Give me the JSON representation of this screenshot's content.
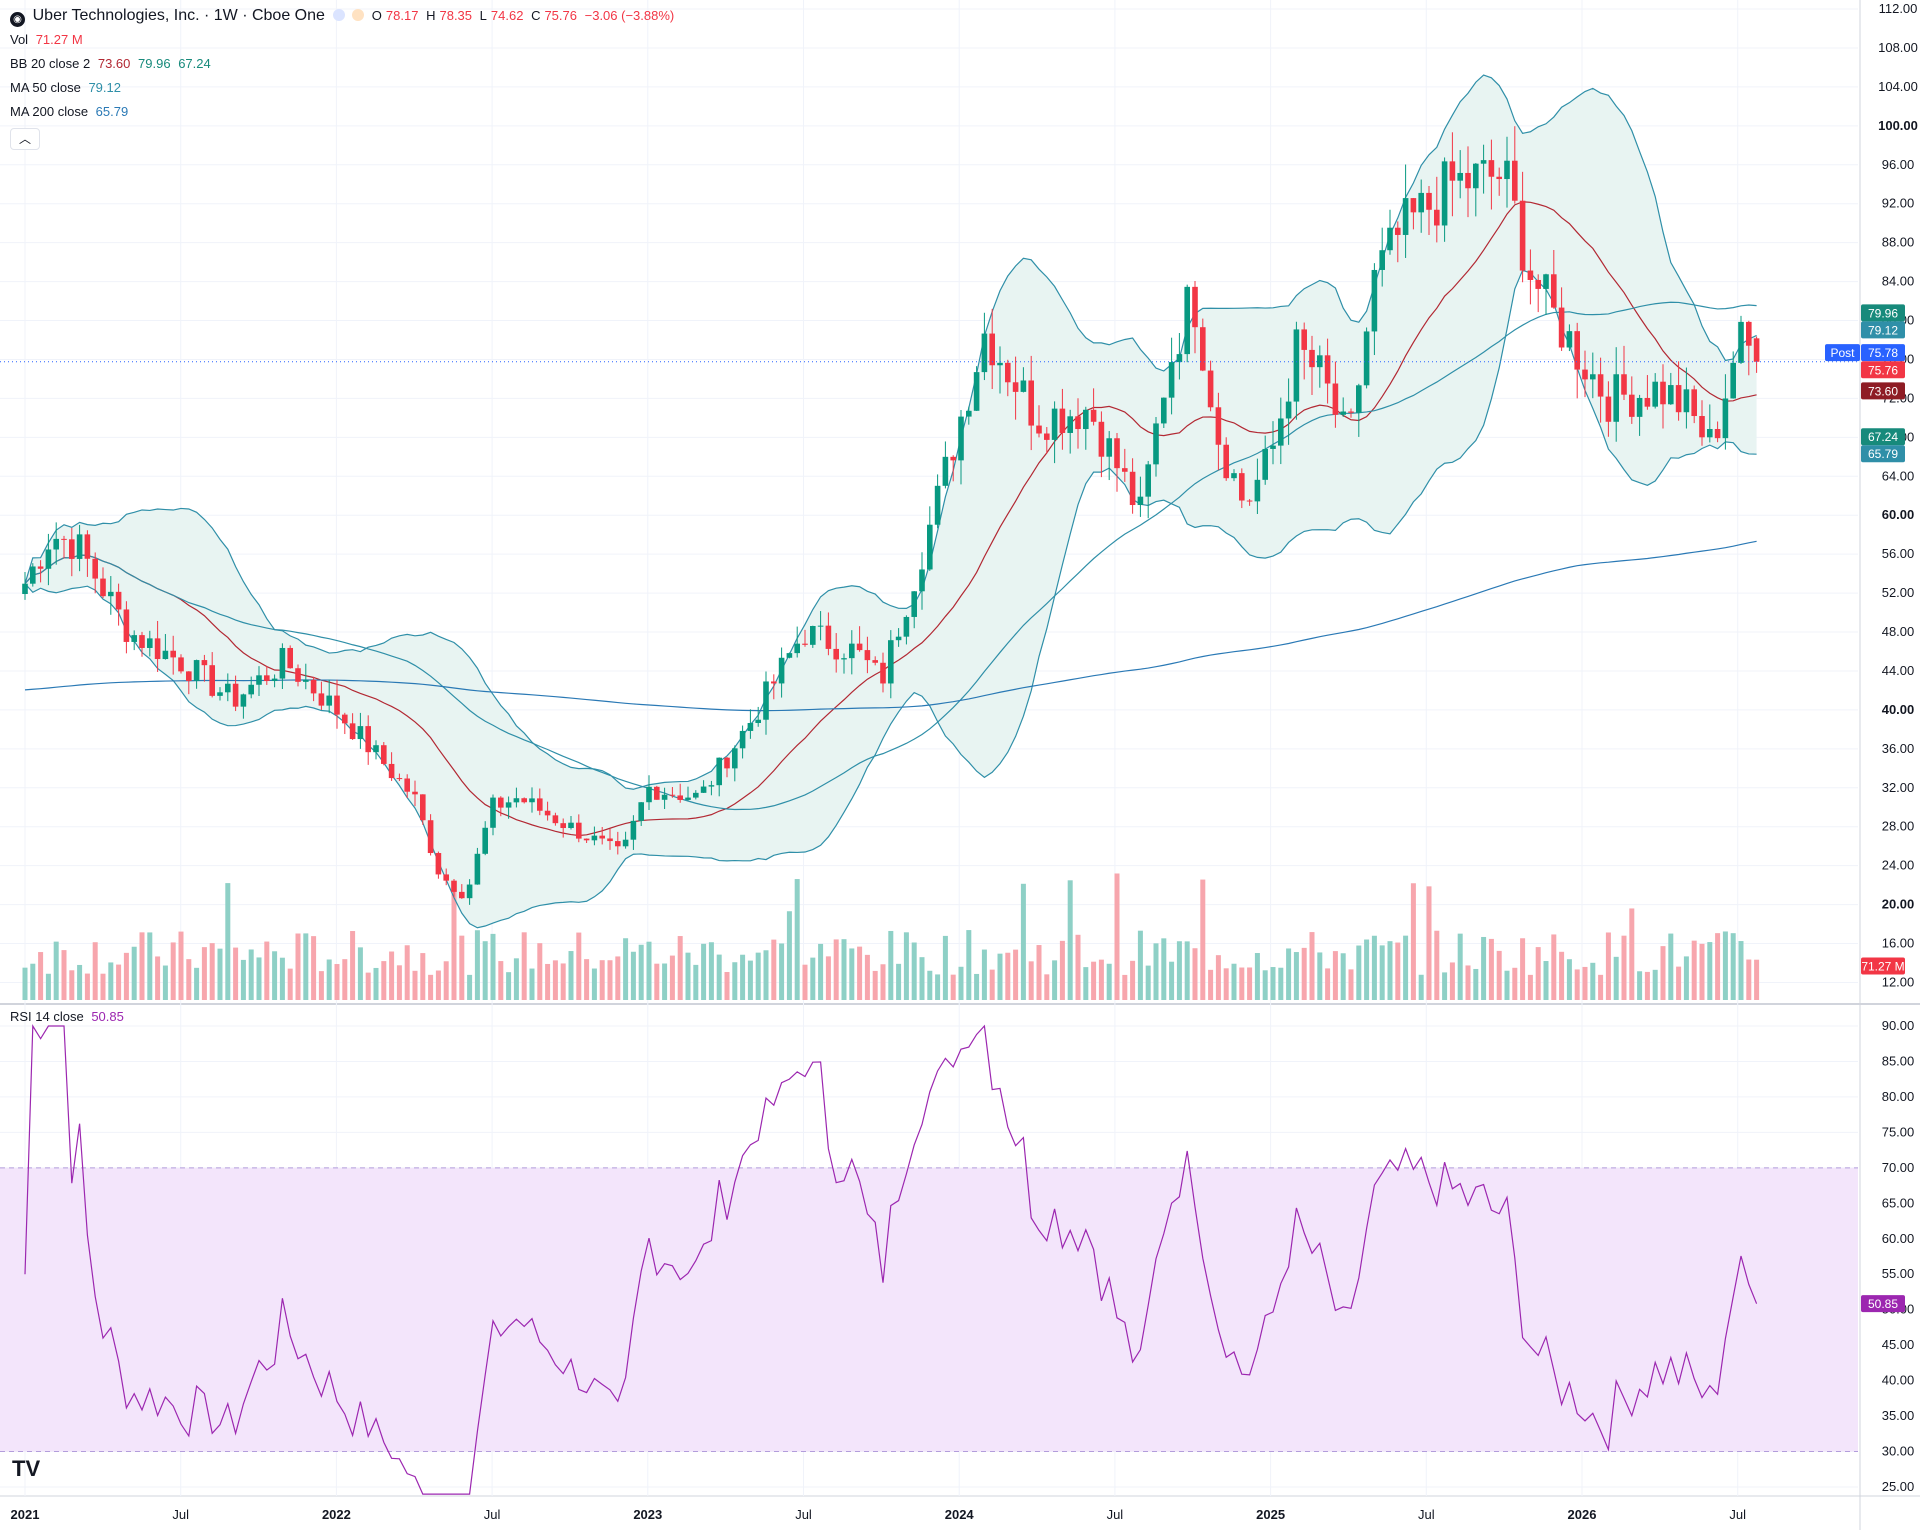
{
  "header": {
    "title": "Uber Technologies, Inc. · 1W · Cboe One",
    "open_label": "O",
    "open": "78.17",
    "high_label": "H",
    "high": "78.35",
    "low_label": "L",
    "low": "74.62",
    "close_label": "C",
    "close": "75.76",
    "change": "−3.06 (−3.88%)",
    "vol_label": "Vol",
    "vol": "71.27 M",
    "bb_label": "BB 20 close 2",
    "bb_basis": "73.60",
    "bb_upper": "79.96",
    "bb_lower": "67.24",
    "ma50_label": "MA 50 close",
    "ma50": "79.12",
    "ma200_label": "MA 200 close",
    "ma200": "65.79",
    "collapse_icon": "chevron-up-icon",
    "rsi_label": "RSI 14 close",
    "rsi": "50.85"
  },
  "colors": {
    "up": "#089981",
    "down": "#f23645",
    "vol_up": "#8ed0c6",
    "vol_down": "#f7a6ad",
    "bb_basis": "#b22833",
    "bb_band": "#2f8fa8",
    "bb_fill": "#e8f4f2",
    "ma50": "#2f8fa8",
    "ma200": "#2a79b5",
    "rsi_line": "#9c27b0",
    "rsi_fill": "#f3e5fb",
    "post": "#2962ff"
  },
  "price_badges": [
    {
      "label": "79.96",
      "color": "#178a7b"
    },
    {
      "label": "79.12",
      "color": "#2f8fa8"
    },
    {
      "label": "Post",
      "color": "#2962ff"
    },
    {
      "label": "75.78",
      "color": "#2962ff"
    },
    {
      "label": "75.76",
      "color": "#f23645"
    },
    {
      "label": "73.60",
      "color": "#8e1c24"
    },
    {
      "label": "67.24",
      "color": "#178a7b"
    },
    {
      "label": "65.79",
      "color": "#2f8fa8"
    },
    {
      "label": "71.27 M",
      "color": "#f23645"
    },
    {
      "label": "50.85",
      "color": "#9c27b0"
    }
  ],
  "chart_data": [
    {
      "type": "candlestick",
      "title": "Uber Technologies, Inc. · 1W · Cboe One",
      "y_ticks": [
        "112.00",
        "108.00",
        "104.00",
        "100.00",
        "96.00",
        "92.00",
        "88.00",
        "84.00",
        "80.00",
        "76.00",
        "72.00",
        "68.00",
        "64.00",
        "60.00",
        "56.00",
        "52.00",
        "48.00",
        "44.00",
        "40.00",
        "36.00",
        "32.00",
        "28.00",
        "24.00",
        "20.00",
        "16.00",
        "12.00"
      ],
      "y_ticks_bold": [
        "100.00",
        "60.00",
        "40.00",
        "20.00"
      ],
      "ylim": [
        10.2,
        112
      ],
      "x_ticks": [
        "2021",
        "Jul",
        "2022",
        "Jul",
        "2023",
        "Jul",
        "2024",
        "Jul",
        "2025",
        "Jul",
        "2026",
        "Jul"
      ],
      "x_ticks_bold": [
        "2021",
        "2022",
        "2023",
        "2024",
        "2025",
        "2026"
      ],
      "close_anchors": [
        {
          "t": "2021-01",
          "close": 53
        },
        {
          "t": "2021-02",
          "close": 58
        },
        {
          "t": "2021-03",
          "close": 57
        },
        {
          "t": "2021-05",
          "close": 48
        },
        {
          "t": "2021-07",
          "close": 45
        },
        {
          "t": "2021-09",
          "close": 41
        },
        {
          "t": "2021-11",
          "close": 45
        },
        {
          "t": "2022-01",
          "close": 40
        },
        {
          "t": "2022-02",
          "close": 37
        },
        {
          "t": "2022-04",
          "close": 31
        },
        {
          "t": "2022-05",
          "close": 23
        },
        {
          "t": "2022-06",
          "close": 21
        },
        {
          "t": "2022-07",
          "close": 30
        },
        {
          "t": "2022-08",
          "close": 31
        },
        {
          "t": "2022-10",
          "close": 28
        },
        {
          "t": "2022-12",
          "close": 25
        },
        {
          "t": "2023-01",
          "close": 32
        },
        {
          "t": "2023-03",
          "close": 31
        },
        {
          "t": "2023-05",
          "close": 39
        },
        {
          "t": "2023-07",
          "close": 48
        },
        {
          "t": "2023-09",
          "close": 46
        },
        {
          "t": "2023-10",
          "close": 43
        },
        {
          "t": "2023-12",
          "close": 60
        },
        {
          "t": "2024-02",
          "close": 79
        },
        {
          "t": "2024-04",
          "close": 70
        },
        {
          "t": "2024-06",
          "close": 71
        },
        {
          "t": "2024-08",
          "close": 60
        },
        {
          "t": "2024-09",
          "close": 75
        },
        {
          "t": "2024-10",
          "close": 83
        },
        {
          "t": "2024-11",
          "close": 68
        },
        {
          "t": "2024-12",
          "close": 61
        },
        {
          "t": "2025-01",
          "close": 66
        },
        {
          "t": "2025-02",
          "close": 77
        },
        {
          "t": "2025-03",
          "close": 74
        },
        {
          "t": "2025-04",
          "close": 67
        },
        {
          "t": "2025-05",
          "close": 84
        },
        {
          "t": "2025-06",
          "close": 89
        },
        {
          "t": "2025-08",
          "close": 94
        },
        {
          "t": "2025-10",
          "close": 95
        },
        {
          "t": "2025-11",
          "close": 85
        },
        {
          "t": "2025-12",
          "close": 80
        },
        {
          "t": "2026-02",
          "close": 72
        },
        {
          "t": "2026-04",
          "close": 73
        },
        {
          "t": "2026-05",
          "close": 71
        },
        {
          "t": "2026-06",
          "close": 67
        },
        {
          "t": "2026-07",
          "close": 78
        },
        {
          "t": "2026-08",
          "close": 75.76
        }
      ],
      "series": [
        {
          "name": "BB 20 close 2",
          "last": [
            73.6,
            79.96,
            67.24
          ]
        },
        {
          "name": "MA 50 close",
          "last": 79.12
        },
        {
          "name": "MA 200 close",
          "last": 65.79
        },
        {
          "name": "Vol",
          "last": "71.27 M"
        }
      ],
      "last": {
        "open": 78.17,
        "high": 78.35,
        "low": 74.62,
        "close": 75.76,
        "post": 75.78
      }
    },
    {
      "type": "line",
      "title": "RSI 14 close",
      "y_ticks": [
        "90.00",
        "85.00",
        "80.00",
        "75.00",
        "70.00",
        "65.00",
        "60.00",
        "55.00",
        "50.00",
        "45.00",
        "40.00",
        "35.00",
        "30.00",
        "25.00"
      ],
      "ylim": [
        23,
        91
      ],
      "band": [
        30,
        70
      ],
      "last": 50.85
    }
  ]
}
